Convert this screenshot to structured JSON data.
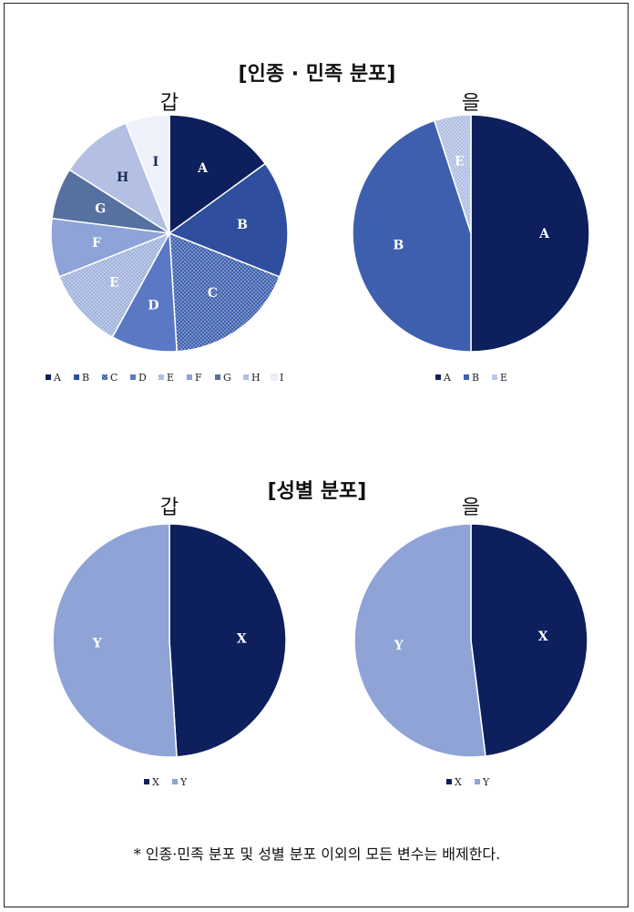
{
  "sections": [
    {
      "title": "[인종 · 민족 분포]"
    },
    {
      "title": "[성별 분포]"
    }
  ],
  "footnote": "* 인종·민족 분포 및 성별 분포 이외의 모든 변수는 배제한다.",
  "chart_data": [
    {
      "type": "pie",
      "title": "갑",
      "categories": [
        "A",
        "B",
        "C",
        "D",
        "E",
        "F",
        "G",
        "H",
        "I"
      ],
      "values": [
        15,
        16,
        18,
        9,
        11,
        8,
        7,
        10,
        6
      ],
      "colors": [
        "#0d1f5c",
        "#2f4f9e",
        "#3c5fae",
        "#5b78c4",
        "#9fb1dc",
        "#8ea3d8",
        "#56709f",
        "#b3c0e3",
        "#eef1f9"
      ],
      "patterns": [
        "solid",
        "solid",
        "dots",
        "solid",
        "dots",
        "solid",
        "solid",
        "solid",
        "solid"
      ],
      "legend": [
        "A",
        "B",
        "C",
        "D",
        "E",
        "F",
        "G",
        "H",
        "I"
      ],
      "legend_position": "bottom"
    },
    {
      "type": "pie",
      "title": "을",
      "categories": [
        "A",
        "B",
        "E"
      ],
      "values": [
        50,
        45,
        5
      ],
      "colors": [
        "#0d1f5c",
        "#3e5fae",
        "#aebde2"
      ],
      "patterns": [
        "solid",
        "solid",
        "dots"
      ],
      "legend": [
        "A",
        "B",
        "E"
      ],
      "legend_position": "bottom"
    },
    {
      "type": "pie",
      "title": "갑",
      "categories": [
        "X",
        "Y"
      ],
      "values": [
        49,
        51
      ],
      "colors": [
        "#0d1f5c",
        "#8fa3d6"
      ],
      "patterns": [
        "solid",
        "solid"
      ],
      "legend": [
        "X",
        "Y"
      ],
      "legend_position": "bottom"
    },
    {
      "type": "pie",
      "title": "을",
      "categories": [
        "X",
        "Y"
      ],
      "values": [
        48,
        52
      ],
      "colors": [
        "#0d1f5c",
        "#8fa3d6"
      ],
      "patterns": [
        "solid",
        "solid"
      ],
      "legend": [
        "X",
        "Y"
      ],
      "legend_position": "bottom"
    }
  ]
}
